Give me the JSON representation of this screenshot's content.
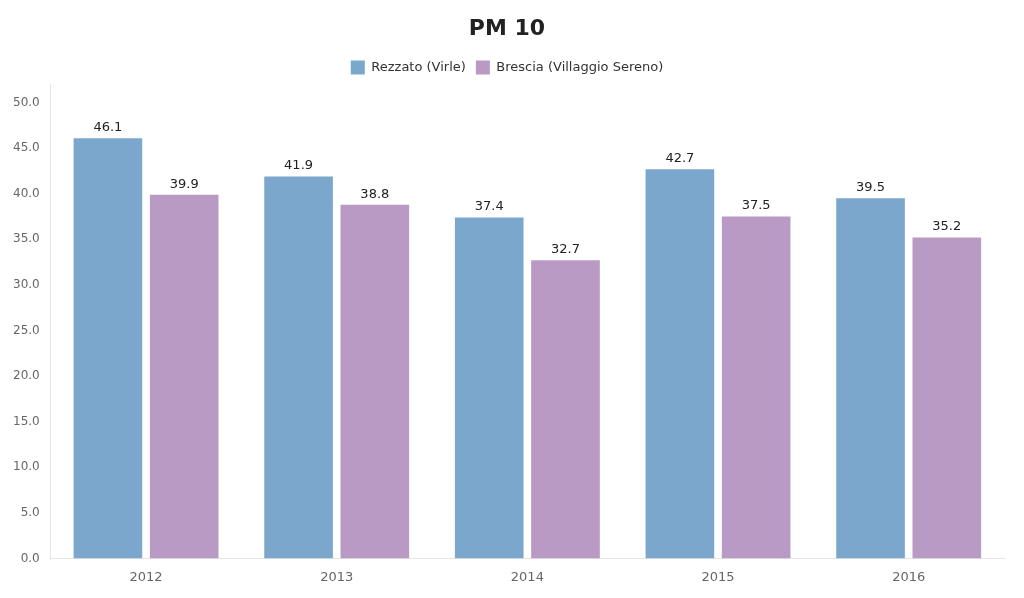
{
  "chart_data": {
    "type": "bar",
    "title": "PM 10",
    "categories": [
      "2012",
      "2013",
      "2014",
      "2015",
      "2016"
    ],
    "series": [
      {
        "name": "Rezzato (Virle)",
        "color": "#7BA7CC",
        "values": [
          46.1,
          41.9,
          37.4,
          42.7,
          39.5
        ]
      },
      {
        "name": "Brescia (Villaggio Sereno)",
        "color": "#B89AC4",
        "values": [
          39.9,
          38.8,
          32.7,
          37.5,
          35.2
        ]
      }
    ],
    "ylim": [
      0,
      52
    ],
    "yticks": [
      {
        "value": 0,
        "label": "0.0"
      },
      {
        "value": 5,
        "label": "5.0"
      },
      {
        "value": 10,
        "label": "10.0"
      },
      {
        "value": 15,
        "label": "15.0"
      },
      {
        "value": 20,
        "label": "20.0"
      },
      {
        "value": 25,
        "label": "25.0"
      },
      {
        "value": 30,
        "label": "30.0"
      },
      {
        "value": 35,
        "label": "35.0"
      },
      {
        "value": 40,
        "label": "40.0"
      },
      {
        "value": 45,
        "label": "45.0"
      },
      {
        "value": 50,
        "label": "50.0"
      }
    ],
    "grid": false,
    "legend": "top",
    "data_labels": true
  }
}
